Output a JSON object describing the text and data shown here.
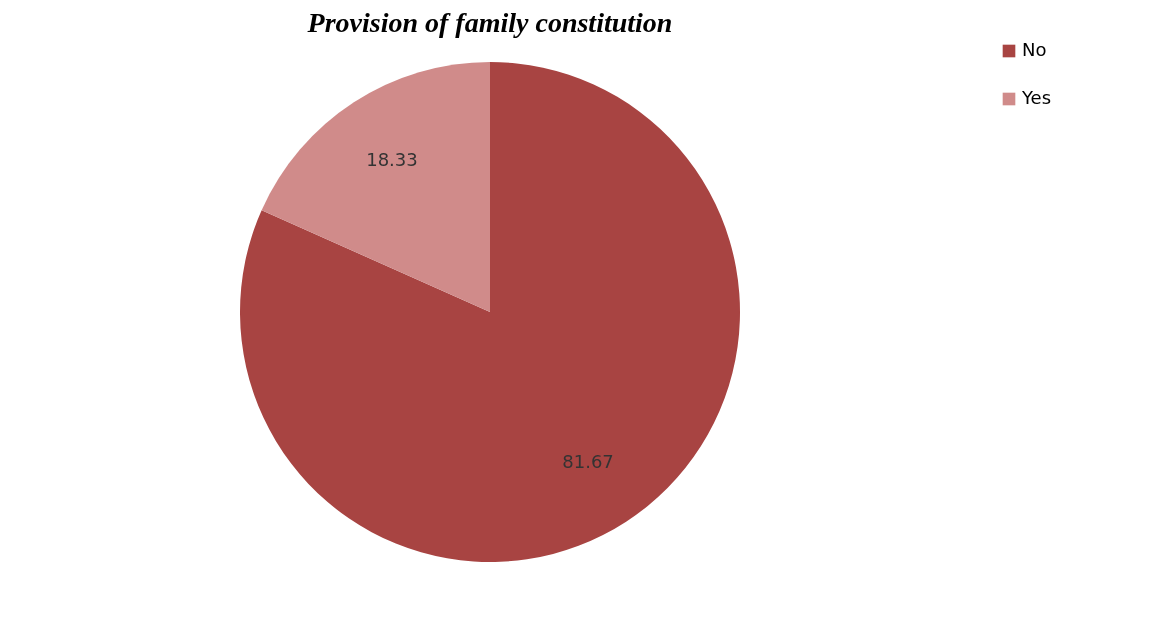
{
  "chart_data": {
    "type": "pie",
    "title": "Provision of family constitution",
    "categories": [
      "No",
      "Yes"
    ],
    "values": [
      81.67,
      18.33
    ],
    "colors": [
      "#a84442",
      "#d08b8a"
    ],
    "data_labels": true,
    "legend": "right"
  }
}
